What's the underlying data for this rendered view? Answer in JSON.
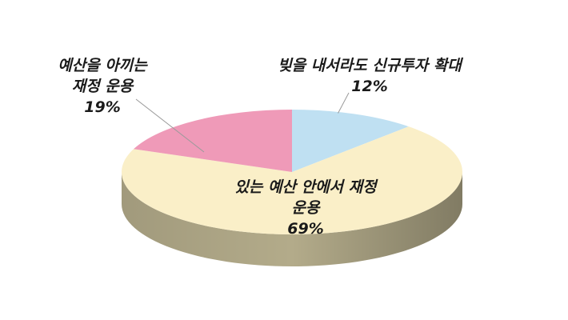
{
  "chart_data": {
    "type": "pie",
    "style": "3d",
    "slices": [
      {
        "label_lines": [
          "빚을 내서라도 신규투자 확대"
        ],
        "percent_text": "12%",
        "value": 12,
        "color": "#bfe0f2",
        "side_color": "#8fb0c0"
      },
      {
        "label_lines": [
          "있는 예산 안에서 재정",
          "운용"
        ],
        "percent_text": "69%",
        "value": 69,
        "color": "#faefc8",
        "side_color": "#b3ab8a"
      },
      {
        "label_lines": [
          "예산을 아끼는",
          "재정 운용"
        ],
        "percent_text": "19%",
        "value": 19,
        "color": "#ef9ab8",
        "side_color": "#b27088"
      }
    ]
  }
}
